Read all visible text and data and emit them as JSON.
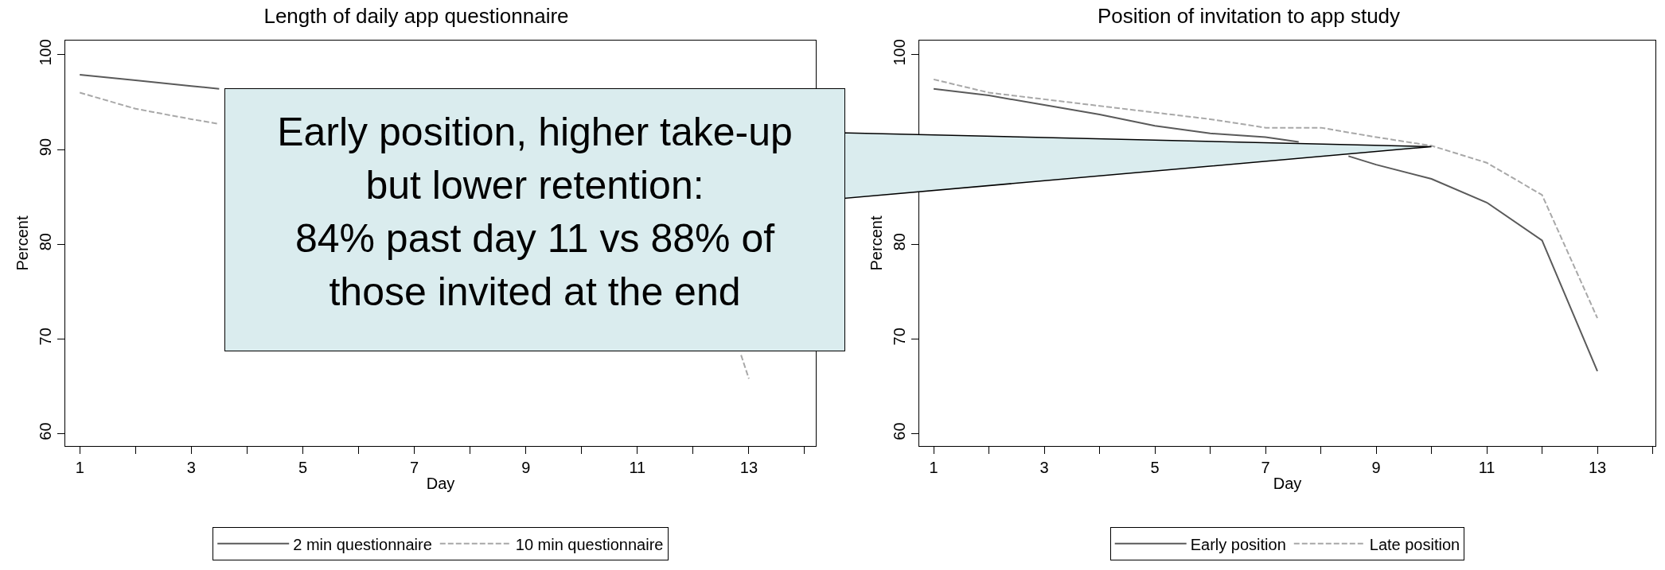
{
  "chart_data": [
    {
      "type": "line",
      "title": "Length of daily app questionnaire",
      "xlabel": "Day",
      "ylabel": "Percent",
      "series": [
        {
          "name": "2 min questionnaire",
          "color": "#5a5a5a",
          "line_style": "solid",
          "x": [
            1,
            2,
            3,
            3.5
          ],
          "values": [
            97.9,
            97.3,
            96.7,
            96.4
          ]
        },
        {
          "name": "10 min questionnaire",
          "color": "#a8a8a8",
          "line_style": "dashed",
          "x": [
            1,
            2,
            3,
            3.5,
            8,
            12.86,
            13
          ],
          "values": [
            96.0,
            94.3,
            93.2,
            92.7,
            null,
            68.3,
            65.8
          ]
        }
      ],
      "xlim": [
        0.74,
        14.2
      ],
      "xticks": [
        1,
        {
          "value": 2,
          "label": null
        },
        3,
        {
          "value": 4,
          "label": null
        },
        5,
        {
          "value": 6,
          "label": null
        },
        7,
        {
          "value": 8,
          "label": null
        },
        9,
        {
          "value": 10,
          "label": null
        },
        11,
        {
          "value": 12,
          "label": null
        },
        13,
        {
          "value": 14,
          "label": null
        }
      ],
      "ylim": [
        58.7,
        101.5
      ],
      "yticks": [
        60,
        70,
        80,
        90,
        100
      ],
      "grid": false,
      "legend": "bottom"
    },
    {
      "type": "line",
      "title": "Position of invitation to app study",
      "xlabel": "Day",
      "ylabel": "Percent",
      "x": [
        1,
        2,
        3,
        4,
        5,
        6,
        7,
        8,
        9,
        10,
        11,
        12,
        13
      ],
      "series": [
        {
          "name": "Early position",
          "color": "#5a5a5a",
          "line_style": "solid",
          "x": [
            1,
            2,
            3,
            4,
            5,
            6,
            7,
            7.6,
            8,
            8.5,
            9,
            10,
            11,
            12,
            13
          ],
          "values": [
            96.4,
            95.7,
            94.7,
            93.7,
            92.5,
            91.7,
            91.3,
            90.8,
            null,
            89.3,
            88.4,
            86.9,
            84.4,
            80.4,
            66.6
          ]
        },
        {
          "name": "Late position",
          "color": "#a8a8a8",
          "line_style": "dashed",
          "values": [
            97.4,
            96.0,
            95.3,
            94.6,
            93.9,
            93.2,
            92.3,
            92.3,
            91.3,
            90.4,
            88.6,
            85.2,
            72.2
          ]
        }
      ],
      "xlim": [
        0.74,
        14.05
      ],
      "xticks": [
        1,
        {
          "value": 2,
          "label": null
        },
        3,
        {
          "value": 4,
          "label": null
        },
        5,
        {
          "value": 6,
          "label": null
        },
        7,
        {
          "value": 8,
          "label": null
        },
        9,
        {
          "value": 10,
          "label": null
        },
        11,
        {
          "value": 12,
          "label": null
        },
        13,
        {
          "value": 14,
          "label": null
        }
      ],
      "ylim": [
        58.7,
        101.5
      ],
      "yticks": [
        60,
        70,
        80,
        {
          "value": 90,
          "label": null
        },
        100
      ],
      "grid": false,
      "legend": "bottom",
      "annotations": [
        {
          "text": "Early position, higher take-up\nbut lower retention:\n84% past day 11 vs 88% of\nthose invited at the end",
          "x": 10,
          "y": 90.3
        }
      ]
    }
  ]
}
